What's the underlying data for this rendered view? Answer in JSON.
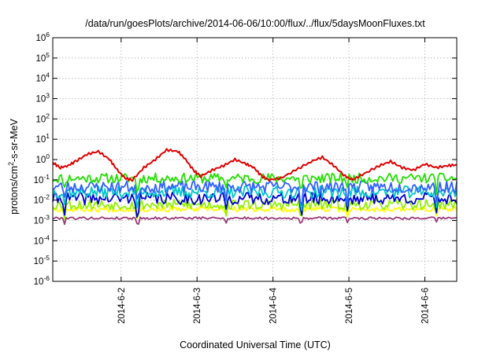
{
  "chart_data": {
    "type": "line",
    "title": "/data/run/goesPlots/archive/2014-06-06/10:00/flux/../flux/5daysMoonFluxes.txt",
    "xlabel": "Coordinated Universal Time (UTC)",
    "ylabel_parts": {
      "base": "protons/cm",
      "sup": "2",
      "rest": "-s-sr-MeV"
    },
    "yscale": "log",
    "ylim": [
      1e-06,
      1000000.0
    ],
    "xlim_days": [
      1.1,
      6.42
    ],
    "x_ticks": [
      {
        "label": "2014-6-2",
        "day": 2
      },
      {
        "label": "2014-6-3",
        "day": 3
      },
      {
        "label": "2014-6-4",
        "day": 4
      },
      {
        "label": "2014-6-5",
        "day": 5
      },
      {
        "label": "2014-6-6",
        "day": 6
      }
    ],
    "y_ticks": [
      {
        "exp": -6,
        "base": "10",
        "sup": "-6"
      },
      {
        "exp": -5,
        "base": "10",
        "sup": "-5"
      },
      {
        "exp": -4,
        "base": "10",
        "sup": "-4"
      },
      {
        "exp": -3,
        "base": "10",
        "sup": "-3"
      },
      {
        "exp": -2,
        "base": "10",
        "sup": "-2"
      },
      {
        "exp": -1,
        "base": "10",
        "sup": "-1"
      },
      {
        "exp": 0,
        "base": "10",
        "sup": "0"
      },
      {
        "exp": 1,
        "base": "10",
        "sup": "1"
      },
      {
        "exp": 2,
        "base": "10",
        "sup": "2"
      },
      {
        "exp": 3,
        "base": "10",
        "sup": "3"
      },
      {
        "exp": 4,
        "base": "10",
        "sup": "4"
      },
      {
        "exp": 5,
        "base": "10",
        "sup": "5"
      },
      {
        "exp": 6,
        "base": "10",
        "sup": "6"
      }
    ],
    "grid": true,
    "series": [
      {
        "color": "#e00000",
        "x_days": [
          1.1,
          1.2,
          1.3,
          1.4,
          1.55,
          1.7,
          1.85,
          1.95,
          2.05,
          2.15,
          2.3,
          2.45,
          2.6,
          2.75,
          2.85,
          2.95,
          3.05,
          3.2,
          3.35,
          3.5,
          3.65,
          3.75,
          3.85,
          3.95,
          4.1,
          4.3,
          4.5,
          4.65,
          4.8,
          4.95,
          5.05,
          5.2,
          5.4,
          5.55,
          5.7,
          5.85,
          6.0,
          6.15,
          6.3,
          6.42
        ],
        "values": [
          0.7,
          0.4,
          0.5,
          0.8,
          1.8,
          2.5,
          1.0,
          0.3,
          0.12,
          0.1,
          0.4,
          1.0,
          3.0,
          2.5,
          1.0,
          0.3,
          0.15,
          0.3,
          0.5,
          1.0,
          0.6,
          0.4,
          0.15,
          0.1,
          0.12,
          0.3,
          0.8,
          1.3,
          0.5,
          0.15,
          0.1,
          0.2,
          0.5,
          0.8,
          0.4,
          0.3,
          0.6,
          0.4,
          0.5,
          0.55
        ]
      },
      {
        "color": "#22e000",
        "mean": 0.12,
        "spread": 0.25,
        "seed": 11
      },
      {
        "color": "#3060ff",
        "mean": 0.045,
        "spread": 0.3,
        "seed": 23
      },
      {
        "color": "#00c8c8",
        "mean": 0.025,
        "spread": 0.3,
        "seed": 37
      },
      {
        "color": "#0000d0",
        "mean": 0.012,
        "spread": 0.3,
        "seed": 41
      },
      {
        "color": "#90f000",
        "mean": 0.006,
        "spread": 0.25,
        "seed": 53
      },
      {
        "color": "#ffff00",
        "mean": 0.0035,
        "spread": 0.12,
        "seed": 67
      },
      {
        "color": "#9a3a7a",
        "mean": 0.0013,
        "spread": 0.06,
        "seed": 79
      }
    ]
  }
}
